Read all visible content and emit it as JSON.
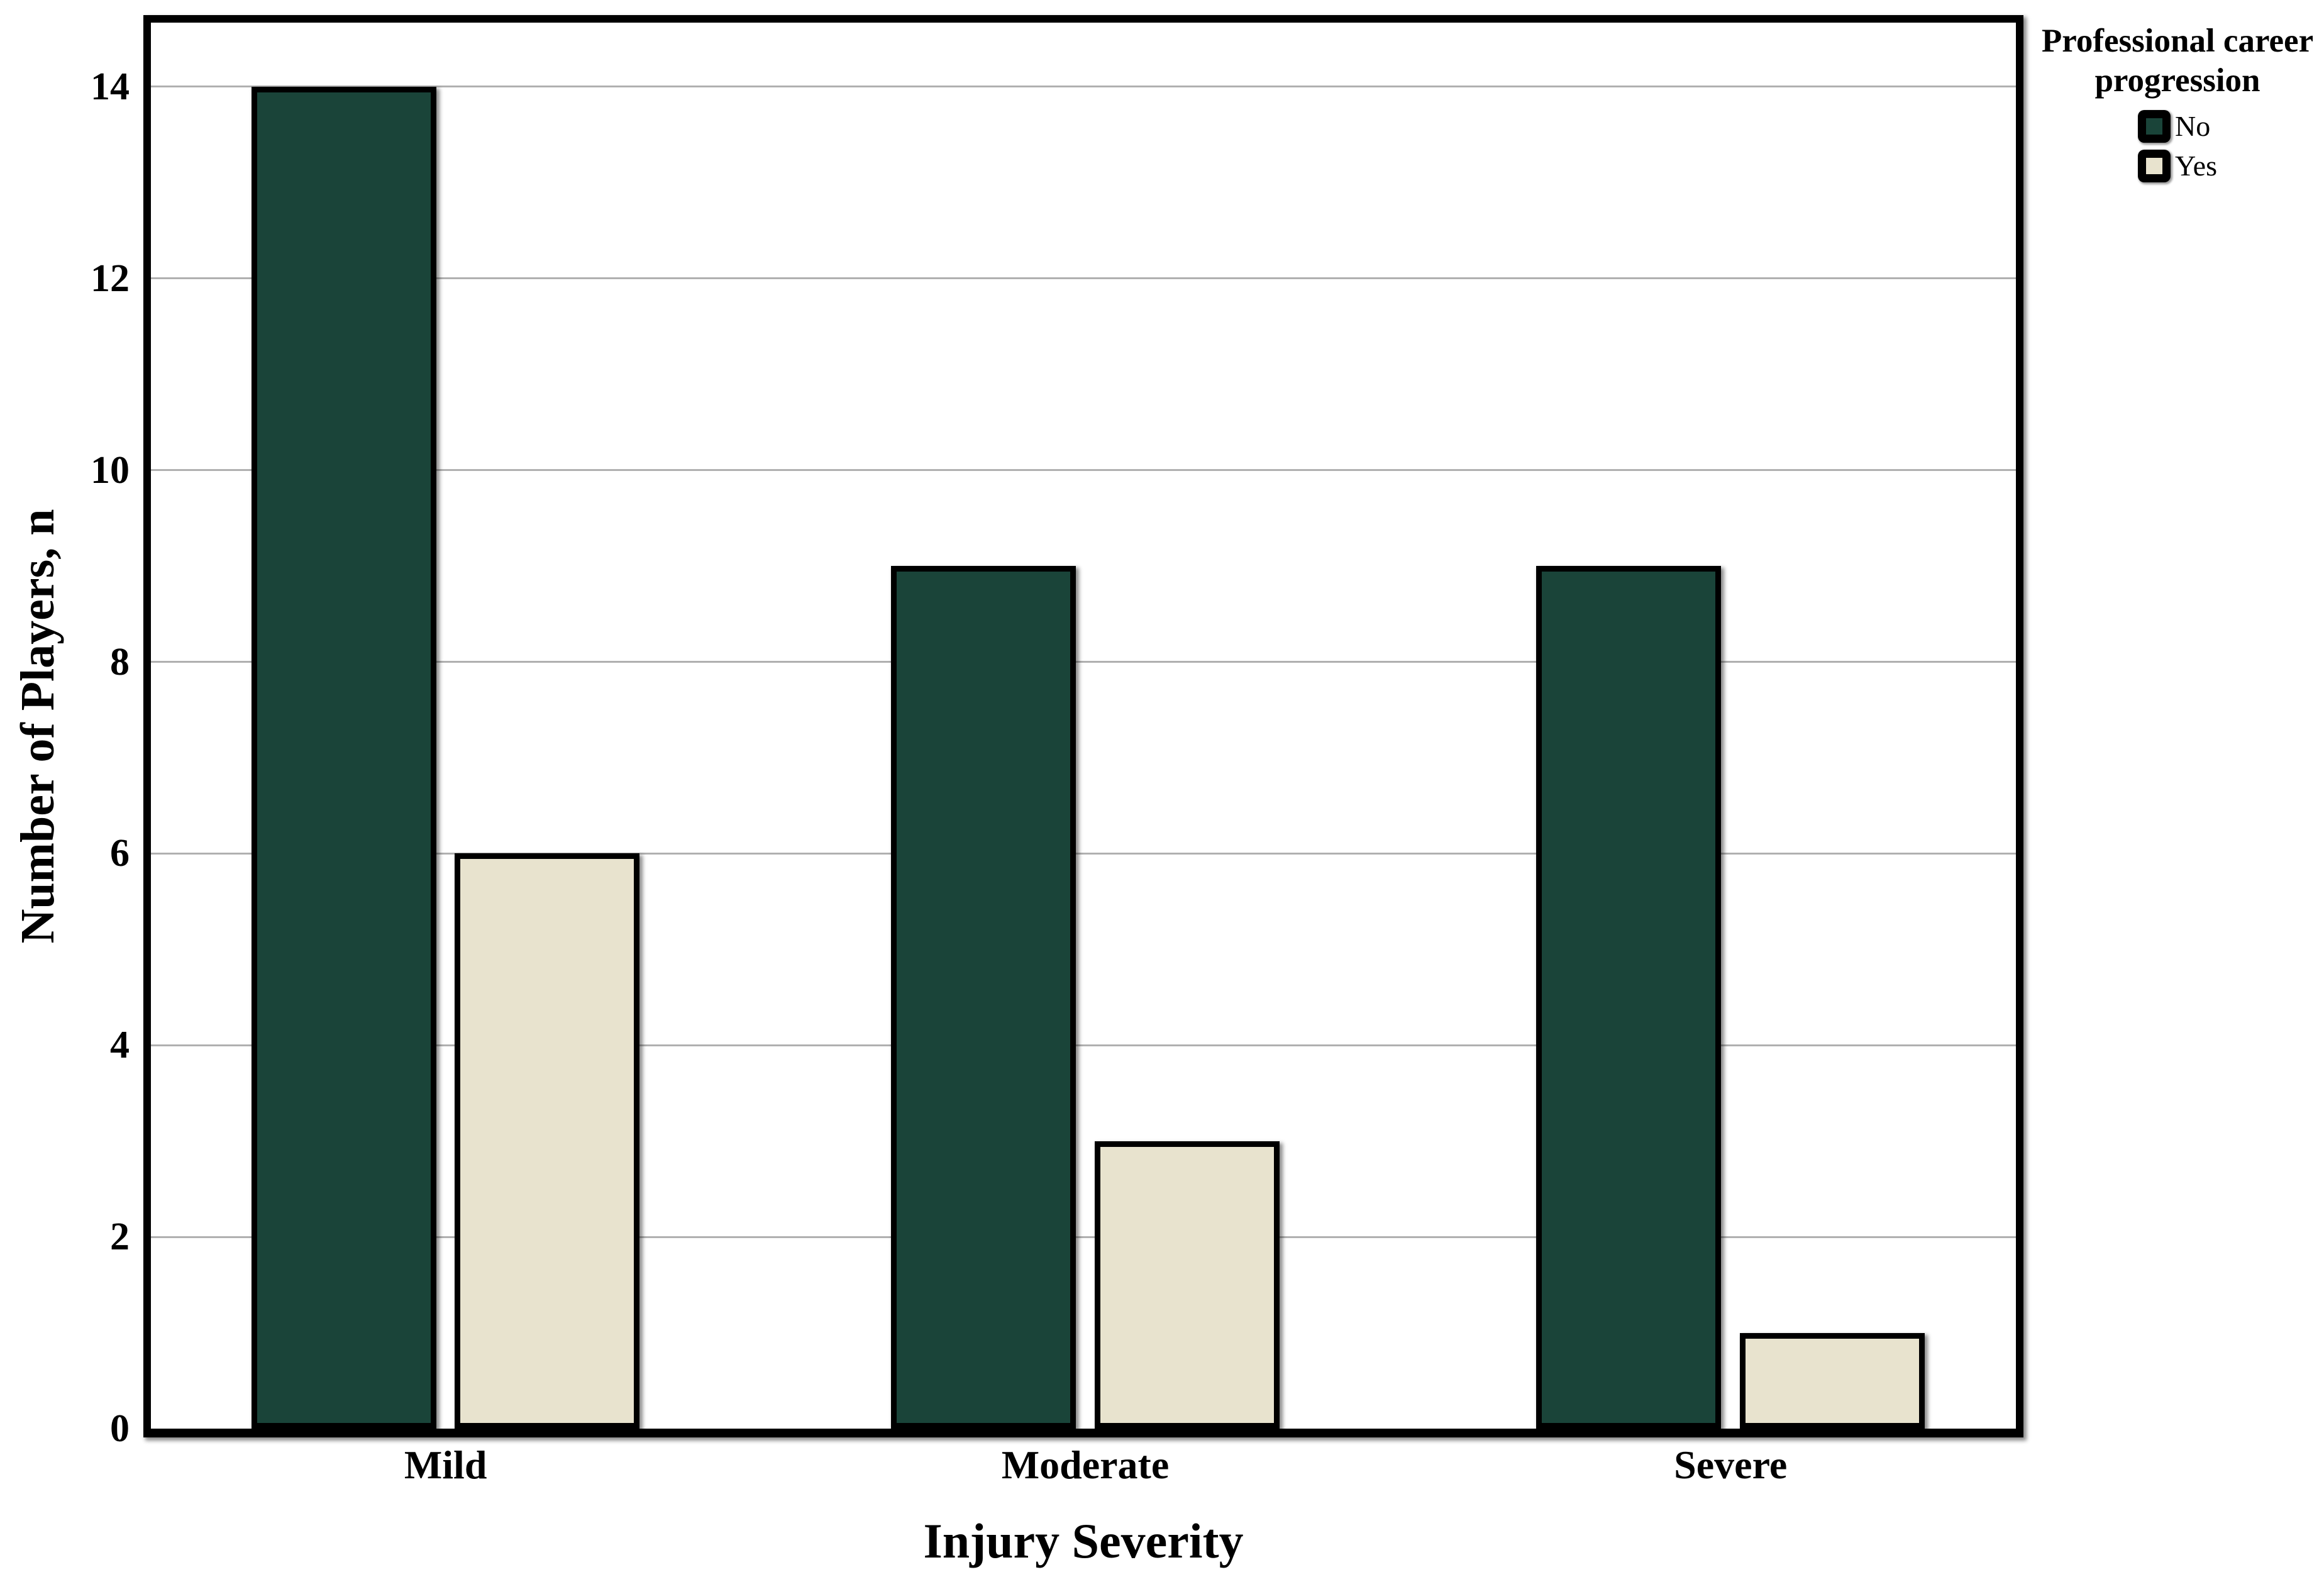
{
  "chart_data": {
    "type": "bar",
    "title": "",
    "categories": [
      "Mild",
      "Moderate",
      "Severe"
    ],
    "series": [
      {
        "name": "No",
        "color": "#1a4439",
        "values": [
          14,
          9,
          9
        ]
      },
      {
        "name": "Yes",
        "color": "#e8e3ce",
        "values": [
          6,
          3,
          1
        ]
      }
    ],
    "xlabel": "Injury Severity",
    "ylabel": "Number of Players, n",
    "ylim": [
      0,
      14.67
    ],
    "yticks": [
      0,
      2,
      4,
      6,
      8,
      10,
      12,
      14
    ],
    "grid": "horizontal",
    "gridline_color": "#b0b0b0",
    "bar_border_color": "#000000",
    "frame_color": "#000000",
    "legend_title": "Professional career progression",
    "legend_position": "outside-top-right"
  }
}
